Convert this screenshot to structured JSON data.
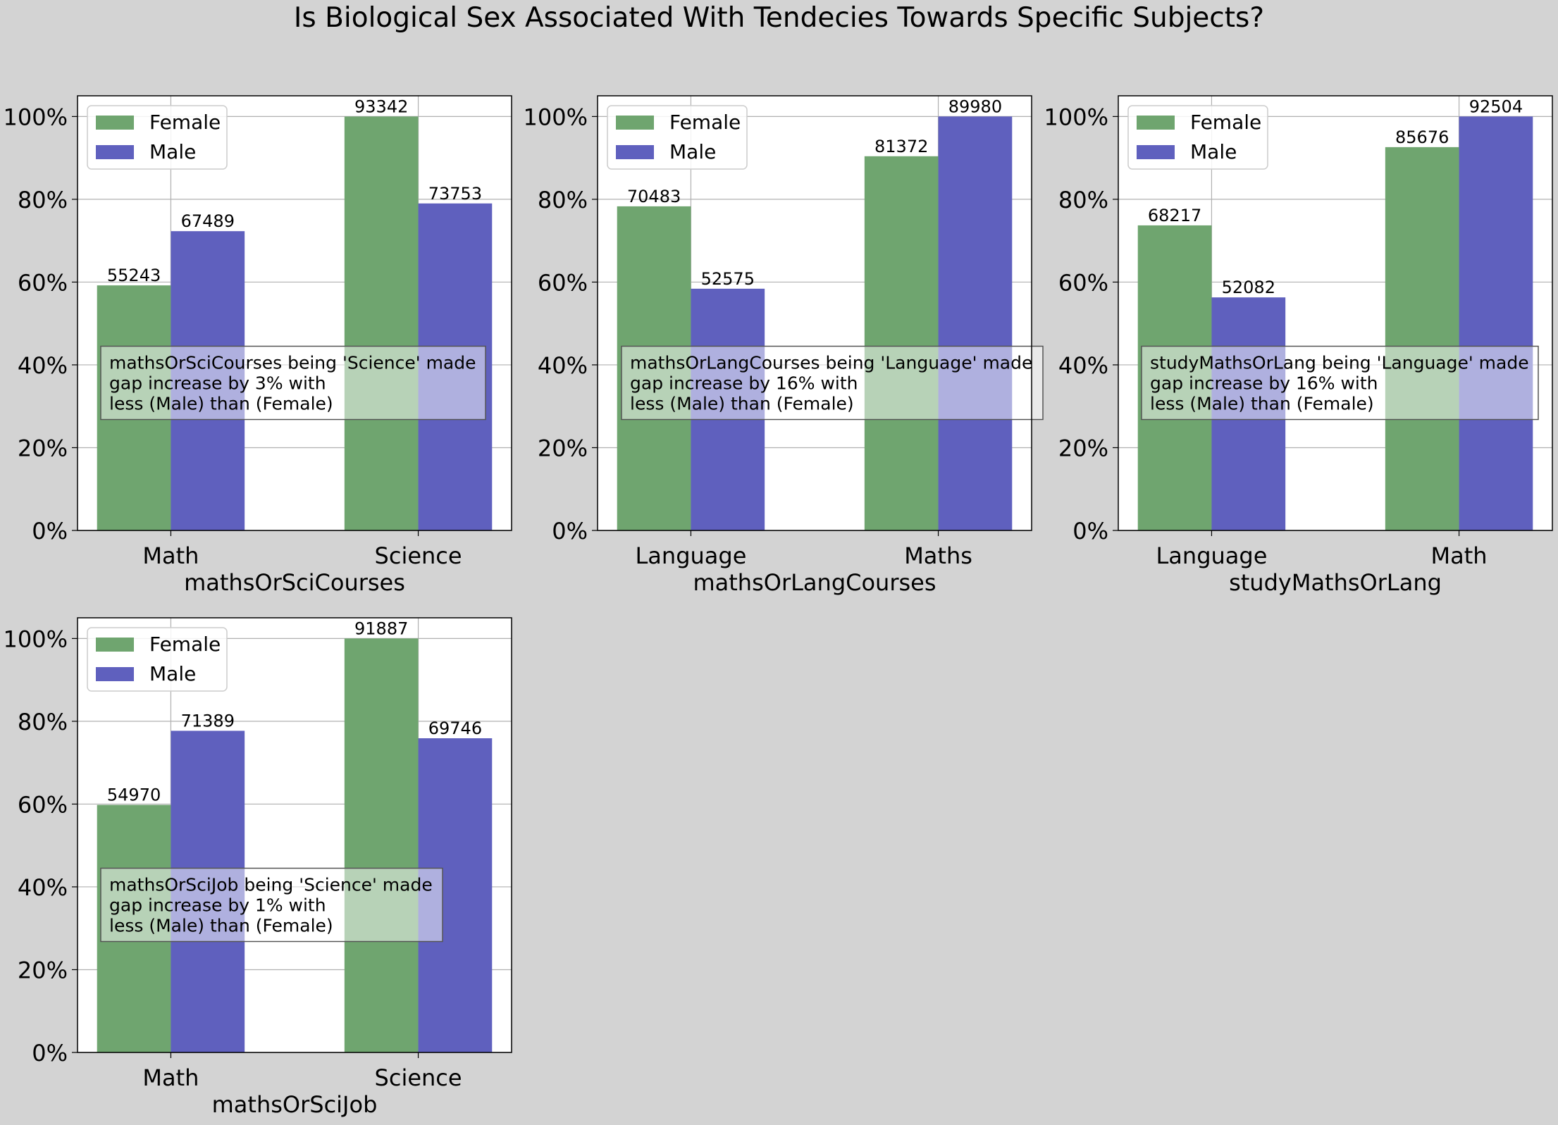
{
  "title": "Is Biological Sex Associated With Tendecies Towards Specific Subjects?",
  "colors": {
    "Female": "#6fa56f",
    "Male": "#5f60be",
    "background": "#d3d3d3"
  },
  "chart_data": [
    {
      "type": "bar",
      "xlabel": "mathsOrSciCourses",
      "categories": [
        "Math",
        "Science"
      ],
      "ylim": [
        0,
        105
      ],
      "yticks": [
        "0%",
        "20%",
        "40%",
        "60%",
        "80%",
        "100%"
      ],
      "grid": true,
      "legend_position": "top-left",
      "series": [
        {
          "name": "Female",
          "values": [
            59.2,
            100.0
          ],
          "labels": [
            "55243",
            "93342"
          ]
        },
        {
          "name": "Male",
          "values": [
            72.3,
            79.0
          ],
          "labels": [
            "67489",
            "73753"
          ]
        }
      ],
      "annotation": [
        "mathsOrSciCourses being 'Science' made",
        "gap increase by 3% with",
        "less (Male) than (Female)"
      ]
    },
    {
      "type": "bar",
      "xlabel": "mathsOrLangCourses",
      "categories": [
        "Language",
        "Maths"
      ],
      "ylim": [
        0,
        105
      ],
      "yticks": [
        "0%",
        "20%",
        "40%",
        "60%",
        "80%",
        "100%"
      ],
      "grid": true,
      "legend_position": "top-left",
      "series": [
        {
          "name": "Female",
          "values": [
            78.3,
            90.4
          ],
          "labels": [
            "70483",
            "81372"
          ]
        },
        {
          "name": "Male",
          "values": [
            58.4,
            100.0
          ],
          "labels": [
            "52575",
            "89980"
          ]
        }
      ],
      "annotation": [
        "mathsOrLangCourses being 'Language' made",
        "gap increase by 16% with",
        "less (Male) than (Female)"
      ]
    },
    {
      "type": "bar",
      "xlabel": "studyMathsOrLang",
      "categories": [
        "Language",
        "Math"
      ],
      "ylim": [
        0,
        105
      ],
      "yticks": [
        "0%",
        "20%",
        "40%",
        "60%",
        "80%",
        "100%"
      ],
      "grid": true,
      "legend_position": "top-left",
      "series": [
        {
          "name": "Female",
          "values": [
            73.7,
            92.6
          ],
          "labels": [
            "68217",
            "85676"
          ]
        },
        {
          "name": "Male",
          "values": [
            56.3,
            100.0
          ],
          "labels": [
            "52082",
            "92504"
          ]
        }
      ],
      "annotation": [
        "studyMathsOrLang being 'Language' made",
        "gap increase by 16% with",
        "less (Male) than (Female)"
      ]
    },
    {
      "type": "bar",
      "xlabel": "mathsOrSciJob",
      "categories": [
        "Math",
        "Science"
      ],
      "ylim": [
        0,
        105
      ],
      "yticks": [
        "0%",
        "20%",
        "40%",
        "60%",
        "80%",
        "100%"
      ],
      "grid": true,
      "legend_position": "top-left",
      "series": [
        {
          "name": "Female",
          "values": [
            59.8,
            100.0
          ],
          "labels": [
            "54970",
            "91887"
          ]
        },
        {
          "name": "Male",
          "values": [
            77.7,
            75.9
          ],
          "labels": [
            "71389",
            "69746"
          ]
        }
      ],
      "annotation": [
        "mathsOrSciJob being 'Science' made",
        "gap increase by 1% with",
        "less (Male) than (Female)"
      ]
    }
  ]
}
